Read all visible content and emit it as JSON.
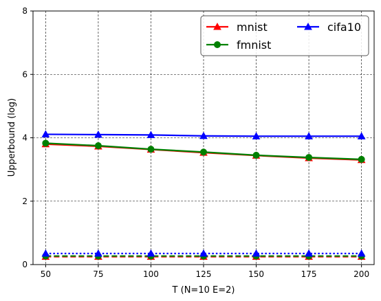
{
  "chart_data": {
    "type": "line",
    "xlabel": "T (N=10 E=2)",
    "ylabel": "Upperbound (log)",
    "xlim": [
      44,
      206
    ],
    "ylim": [
      0,
      8
    ],
    "xticks": [
      50,
      75,
      100,
      125,
      150,
      175,
      200
    ],
    "yticks": [
      0,
      2,
      4,
      6,
      8
    ],
    "grid": true,
    "legend_position": "top-right",
    "x": [
      50,
      75,
      100,
      125,
      150,
      175,
      200
    ],
    "series": [
      {
        "name": "mnist",
        "color": "#ff0000",
        "marker": "triangle",
        "style": "solid",
        "values": [
          3.8,
          3.73,
          3.63,
          3.53,
          3.44,
          3.36,
          3.3
        ]
      },
      {
        "name": "fmnist",
        "color": "#008000",
        "marker": "circle",
        "style": "solid",
        "values": [
          3.83,
          3.75,
          3.64,
          3.55,
          3.45,
          3.38,
          3.32
        ]
      },
      {
        "name": "cifa10",
        "color": "#0000ff",
        "marker": "triangle",
        "style": "solid",
        "values": [
          4.11,
          4.1,
          4.09,
          4.06,
          4.05,
          4.05,
          4.05
        ]
      },
      {
        "color": "#ff0000",
        "marker": "triangle",
        "style": "dashed",
        "values": [
          0.25,
          0.25,
          0.25,
          0.25,
          0.25,
          0.25,
          0.25
        ]
      },
      {
        "color": "#008000",
        "marker": "circle",
        "style": "dashed",
        "values": [
          0.27,
          0.27,
          0.27,
          0.27,
          0.27,
          0.27,
          0.27
        ]
      },
      {
        "color": "#0000ff",
        "marker": "triangle",
        "style": "dotted",
        "values": [
          0.35,
          0.35,
          0.35,
          0.35,
          0.35,
          0.35,
          0.35
        ]
      }
    ],
    "legend_entries": [
      {
        "label": "mnist",
        "color": "#ff0000",
        "marker": "triangle"
      },
      {
        "label": "fmnist",
        "color": "#008000",
        "marker": "circle"
      },
      {
        "label": "cifa10",
        "color": "#0000ff",
        "marker": "triangle"
      }
    ]
  }
}
